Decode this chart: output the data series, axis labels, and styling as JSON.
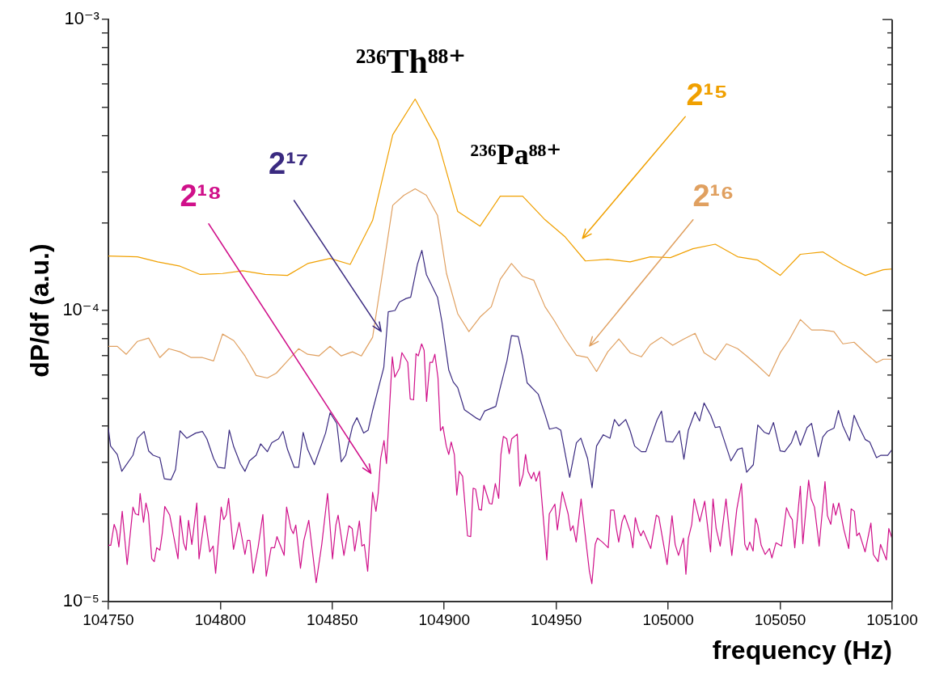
{
  "chart_data": {
    "type": "line",
    "xlabel": "frequency (Hz)",
    "ylabel": "dP/df (a.u.)",
    "annotations": [
      "²³⁶Th⁸⁸⁺",
      "²³⁶Pa⁸⁸⁺"
    ],
    "xlim": [
      104750,
      105100
    ],
    "xticks": [
      104750,
      104800,
      104850,
      104900,
      104950,
      105000,
      105050,
      105100
    ],
    "ylim": [
      1e-05,
      0.001
    ],
    "log": true,
    "yticks": [
      {
        "value": 1e-05,
        "label": "10⁻⁵"
      },
      {
        "value": 2e-05,
        "label": null
      },
      {
        "value": 3e-05,
        "label": null
      },
      {
        "value": 4e-05,
        "label": null
      },
      {
        "value": 5e-05,
        "label": null
      },
      {
        "value": 6e-05,
        "label": null
      },
      {
        "value": 7e-05,
        "label": null
      },
      {
        "value": 8e-05,
        "label": null
      },
      {
        "value": 9e-05,
        "label": null
      },
      {
        "value": 0.0001,
        "label": "10⁻⁴"
      },
      {
        "value": 0.0002,
        "label": null
      },
      {
        "value": 0.0003,
        "label": null
      },
      {
        "value": 0.0004,
        "label": null
      },
      {
        "value": 0.0005,
        "label": null
      },
      {
        "value": 0.0006,
        "label": null
      },
      {
        "value": 0.0007,
        "label": null
      },
      {
        "value": 0.0008,
        "label": null
      },
      {
        "value": 0.0009,
        "label": null
      },
      {
        "value": 0.001,
        "label": "10⁻³"
      }
    ],
    "grid": false,
    "legend": false,
    "marker": "none",
    "line_style": "solid",
    "series": [
      {
        "name": "2¹⁵",
        "color": "#f0a000",
        "x": [
          104750,
          104763,
          104772,
          104782,
          104791,
          104801,
          104810,
          104820,
          104830,
          104839,
          104849,
          104858,
          104868,
          104877,
          104887,
          104897,
          104906,
          104916,
          104925,
          104935,
          104945,
          104954,
          104963,
          104973,
          104983,
          104992,
          105001,
          105011,
          105021,
          105031,
          105040,
          105050,
          105059,
          105069,
          105078,
          105088,
          105096,
          105100
        ],
        "values": [
          0.000154,
          0.000153,
          0.000147,
          0.000142,
          0.000133,
          0.000134,
          0.000137,
          0.000133,
          0.000132,
          0.000145,
          0.000151,
          0.000144,
          0.000204,
          0.000402,
          0.000533,
          0.000385,
          0.000219,
          0.000195,
          0.000247,
          0.000247,
          0.000205,
          0.000179,
          0.000148,
          0.00015,
          0.000147,
          0.000153,
          0.000152,
          0.000163,
          0.000169,
          0.000153,
          0.000149,
          0.000132,
          0.000156,
          0.000159,
          0.000144,
          0.000132,
          0.000138,
          0.000139
        ]
      },
      {
        "name": "2¹⁶",
        "color": "#e0a060",
        "x": [
          104750,
          104754,
          104758,
          104763,
          104768,
          104773,
          104777,
          104782,
          104787,
          104792,
          104797,
          104801,
          104806,
          104811,
          104816,
          104821,
          104825,
          104830,
          104835,
          104839,
          104844,
          104849,
          104854,
          104859,
          104863,
          104868,
          104873,
          104877,
          104882,
          104887,
          104892,
          104897,
          104901,
          104906,
          104911,
          104916,
          104921,
          104925,
          104930,
          104935,
          104940,
          104945,
          104949,
          104954,
          104959,
          104964,
          104968,
          104973,
          104978,
          104983,
          104988,
          104992,
          104997,
          105002,
          105007,
          105012,
          105016,
          105021,
          105026,
          105031,
          105035,
          105040,
          105045,
          105050,
          105054,
          105059,
          105064,
          105069,
          105074,
          105078,
          105083,
          105088,
          105093,
          105096,
          105100
        ],
        "values": [
          7.53e-05,
          7.53e-05,
          7.07e-05,
          7.83e-05,
          8.04e-05,
          6.89e-05,
          7.39e-05,
          7.21e-05,
          6.89e-05,
          6.89e-05,
          6.71e-05,
          8.3e-05,
          7.88e-05,
          6.98e-05,
          5.98e-05,
          5.86e-05,
          6.09e-05,
          6.71e-05,
          7.39e-05,
          7.07e-05,
          6.98e-05,
          7.53e-05,
          6.98e-05,
          7.21e-05,
          6.98e-05,
          8.09e-05,
          0.000144,
          0.00023,
          0.000249,
          0.000262,
          0.000249,
          0.000212,
          0.000134,
          9.75e-05,
          8.46e-05,
          9.5e-05,
          0.000103,
          0.000128,
          0.000145,
          0.000131,
          0.000127,
          0.000103,
          9.26e-05,
          7.98e-05,
          7.02e-05,
          6.89e-05,
          6.17e-05,
          7.21e-05,
          7.98e-05,
          7.16e-05,
          6.93e-05,
          7.63e-05,
          8.09e-05,
          7.59e-05,
          7.98e-05,
          8.35e-05,
          7.16e-05,
          6.76e-05,
          7.68e-05,
          7.39e-05,
          6.98e-05,
          6.46e-05,
          5.94e-05,
          7.16e-05,
          7.93e-05,
          9.31e-05,
          8.57e-05,
          8.57e-05,
          8.46e-05,
          7.68e-05,
          7.78e-05,
          7.16e-05,
          6.62e-05,
          6.8e-05,
          6.8e-05
        ]
      },
      {
        "name": "2¹⁷",
        "color": "#3a2a80",
        "x": [
          104750,
          104751,
          104754,
          104756,
          104761,
          104763,
          104766,
          104768,
          104770,
          104773,
          104775,
          104778,
          104780,
          104782,
          104785,
          104789,
          104792,
          104794,
          104797,
          104799,
          104802,
          104804,
          104806,
          104809,
          104811,
          104813,
          104816,
          104818,
          104821,
          104823,
          104826,
          104828,
          104830,
          104833,
          104835,
          104837,
          104839,
          104842,
          104847,
          104849,
          104852,
          104854,
          104856,
          104859,
          104861,
          104864,
          104866,
          104868,
          104873,
          104875,
          104878,
          104880,
          104883,
          104885,
          104888,
          104890,
          104892,
          104897,
          104899,
          104902,
          104904,
          104906,
          104909,
          104914,
          104916,
          104918,
          104923,
          104925,
          104928,
          104930,
          104933,
          104935,
          104937,
          104942,
          104945,
          104947,
          104950,
          104952,
          104956,
          104959,
          104961,
          104964,
          104966,
          104968,
          104971,
          104974,
          104976,
          104978,
          104981,
          104983,
          104985,
          104988,
          104990,
          104995,
          104997,
          104999,
          105002,
          105005,
          105007,
          105009,
          105012,
          105014,
          105016,
          105019,
          105021,
          105023,
          105028,
          105031,
          105033,
          105035,
          105038,
          105040,
          105043,
          105045,
          105047,
          105050,
          105052,
          105055,
          105057,
          105059,
          105062,
          105064,
          105067,
          105069,
          105071,
          105074,
          105076,
          105078,
          105081,
          105083,
          105085,
          105088,
          105090,
          105093,
          105095,
          105098,
          105100
        ],
        "values": [
          3.94e-05,
          3.42e-05,
          3.2e-05,
          2.8e-05,
          3.18e-05,
          3.64e-05,
          3.84e-05,
          3.29e-05,
          3.18e-05,
          3.12e-05,
          2.64e-05,
          2.62e-05,
          2.84e-05,
          3.86e-05,
          3.64e-05,
          3.79e-05,
          3.84e-05,
          3.62e-05,
          3.1e-05,
          2.89e-05,
          2.87e-05,
          3.88e-05,
          3.4e-05,
          2.97e-05,
          2.8e-05,
          3.04e-05,
          3.18e-05,
          3.48e-05,
          3.27e-05,
          3.51e-05,
          3.62e-05,
          3.84e-05,
          3.33e-05,
          2.89e-05,
          2.89e-05,
          3.81e-05,
          3.33e-05,
          2.95e-05,
          3.79e-05,
          4.45e-05,
          4.09e-05,
          3.02e-05,
          3.18e-05,
          3.99e-05,
          4.28e-05,
          3.79e-05,
          3.88e-05,
          4.53e-05,
          6.37e-05,
          9.9e-05,
          0.0001,
          0.000107,
          0.00011,
          0.000111,
          0.000144,
          0.000161,
          0.000133,
          0.000111,
          9.1e-05,
          6.25e-05,
          5.68e-05,
          5.43e-05,
          4.56e-05,
          4.28e-05,
          4.2e-05,
          4.51e-05,
          4.68e-05,
          5.43e-05,
          6.71e-05,
          8.19e-05,
          8.14e-05,
          6.93e-05,
          5.64e-05,
          5.15e-05,
          4.39e-05,
          3.91e-05,
          3.96e-05,
          3.88e-05,
          2.67e-05,
          3.51e-05,
          3.64e-05,
          3.1e-05,
          2.46e-05,
          3.42e-05,
          3.74e-05,
          3.64e-05,
          4.22e-05,
          4.01e-05,
          4.22e-05,
          3.86e-05,
          3.42e-05,
          3.27e-05,
          3.27e-05,
          4.2e-05,
          4.51e-05,
          3.55e-05,
          3.53e-05,
          3.86e-05,
          3.08e-05,
          3.88e-05,
          4.48e-05,
          4.17e-05,
          4.81e-05,
          4.36e-05,
          3.96e-05,
          3.99e-05,
          3.04e-05,
          3.33e-05,
          3.37e-05,
          2.78e-05,
          2.95e-05,
          4.04e-05,
          3.81e-05,
          3.76e-05,
          4.12e-05,
          3.29e-05,
          3.27e-05,
          3.51e-05,
          3.86e-05,
          3.44e-05,
          3.96e-05,
          4.09e-05,
          3.14e-05,
          3.67e-05,
          3.84e-05,
          3.94e-05,
          4.53e-05,
          4.01e-05,
          3.57e-05,
          4.36e-05,
          4.01e-05,
          3.6e-05,
          3.53e-05,
          3.12e-05,
          3.18e-05,
          3.18e-05,
          3.33e-05
        ]
      },
      {
        "name": "2¹⁸",
        "color": "#d0108a",
        "x": [
          104750.0,
          104751.1,
          104752.6,
          104753.7,
          104754.7,
          104756.2,
          104758.4,
          104761.0,
          104762.1,
          104763.5,
          104764.2,
          104765.7,
          104766.8,
          104767.9,
          104769.4,
          104770.5,
          104771.6,
          104773.0,
          104774.1,
          104775.2,
          104777.4,
          104781.1,
          104782.1,
          104783.6,
          104784.7,
          104785.8,
          104787.3,
          104789.5,
          104790.5,
          104793.1,
          104795.3,
          104796.8,
          104797.9,
          104800.4,
          104801.5,
          104802.6,
          104803.7,
          104805.9,
          104808.4,
          104811.0,
          104812.1,
          104813.2,
          104814.7,
          104816.9,
          104819.0,
          104820.5,
          104822.7,
          104824.2,
          104825.3,
          104828.5,
          104829.6,
          104831.5,
          104832.6,
          104833.7,
          104835.8,
          104837.3,
          104839.5,
          104842.8,
          104845.3,
          104847.9,
          104850.1,
          104851.6,
          104852.6,
          104855.2,
          104857.4,
          104858.9,
          104860.0,
          104862.1,
          104863.2,
          104864.3,
          104865.8,
          104868.0,
          104869.5,
          104870.5,
          104871.6,
          104873.1,
          104874.2,
          104876.8,
          104877.9,
          104880.0,
          104881.1,
          104883.7,
          104884.8,
          104886.3,
          104887.4,
          104888.4,
          104889.9,
          104891.0,
          104892.1,
          104893.6,
          104894.7,
          104895.8,
          104897.2,
          104898.3,
          104899.4,
          104900.9,
          104902.0,
          104903.1,
          104904.5,
          104905.6,
          104906.7,
          104908.2,
          104910.4,
          104911.8,
          104912.9,
          104914.0,
          104915.5,
          104916.6,
          104917.7,
          104920.2,
          104921.3,
          104922.8,
          104924.3,
          104925.3,
          104926.4,
          104927.9,
          104929.0,
          104930.1,
          104932.6,
          104933.7,
          104935.2,
          104936.3,
          104937.4,
          104938.9,
          104940.0,
          104941.0,
          104942.5,
          104945.8,
          104946.9,
          104949.4,
          104950.5,
          104952.7,
          104955.3,
          104956.4,
          104957.5,
          104958.9,
          104961.1,
          104964.8,
          104965.9,
          104967.4,
          104968.4,
          104970.6,
          104973.2,
          104974.3,
          104975.8,
          104976.8,
          104977.9,
          104979.4,
          104980.5,
          104983.1,
          104984.2,
          104985.3,
          104986.7,
          104987.8,
          104988.9,
          104990.4,
          104992.2,
          104994.7,
          104995.8,
          104999.5,
          105001.7,
          105003.1,
          105004.6,
          105006.8,
          105007.9,
          105009.0,
          105010.5,
          105011.6,
          105014.1,
          105016.3,
          105018.9,
          105020.0,
          105021.4,
          105023.2,
          105025.8,
          105028.4,
          105030.6,
          105032.7,
          105034.2,
          105035.3,
          105036.4,
          105037.9,
          105039.0,
          105040.0,
          105041.5,
          105043.3,
          105045.2,
          105046.3,
          105048.1,
          105050.6,
          105052.8,
          105054.3,
          105055.4,
          105056.5,
          105059.0,
          105060.1,
          105062.7,
          105063.8,
          105065.3,
          105067.4,
          105070.0,
          105071.1,
          105072.6,
          105073.7,
          105074.8,
          105076.2,
          105078.4,
          105080.6,
          105081.7,
          105083.1,
          105084.2,
          105085.3,
          105087.9,
          105090.5,
          105091.6,
          105093.7,
          105094.8,
          105097.4,
          105098.5,
          105100.0
        ],
        "values": [
          1.56e-05,
          1.56e-05,
          1.84e-05,
          1.74e-05,
          1.54e-05,
          2.04e-05,
          1.34e-05,
          2.11e-05,
          2e-05,
          1.98e-05,
          2.35e-05,
          1.87e-05,
          2.18e-05,
          2e-05,
          1.4e-05,
          1.37e-05,
          1.53e-05,
          1.5e-05,
          1.72e-05,
          2.12e-05,
          1.98e-05,
          1.4e-05,
          1.97e-05,
          1.59e-05,
          1.5e-05,
          1.9e-05,
          1.57e-05,
          2.18e-05,
          1.4e-05,
          1.97e-05,
          1.48e-05,
          1.55e-05,
          1.25e-05,
          2.11e-05,
          1.91e-05,
          1.98e-05,
          2.26e-05,
          1.51e-05,
          1.87e-05,
          1.45e-05,
          1.62e-05,
          1.62e-05,
          1.25e-05,
          1.54e-05,
          1.99e-05,
          1.22e-05,
          1.53e-05,
          1.53e-05,
          1.67e-05,
          1.44e-05,
          2.11e-05,
          1.78e-05,
          1.71e-05,
          1.83e-05,
          1.3e-05,
          1.62e-05,
          1.9e-05,
          1.16e-05,
          1.57e-05,
          2.35e-05,
          1.4e-05,
          1.83e-05,
          1.98e-05,
          1.44e-05,
          1.82e-05,
          1.78e-05,
          1.49e-05,
          1.89e-05,
          1.55e-05,
          1.57e-05,
          1.27e-05,
          2.37e-05,
          2.04e-05,
          2.35e-05,
          3.1e-05,
          3.57e-05,
          2.98e-05,
          6.93e-05,
          5.9e-05,
          6.34e-05,
          7.16e-05,
          6.63e-05,
          4.96e-05,
          4.93e-05,
          7.11e-05,
          6.98e-05,
          7.68e-05,
          7.3e-05,
          4.87e-05,
          6.63e-05,
          6.63e-05,
          7.07e-05,
          5.86e-05,
          3.86e-05,
          3.99e-05,
          3.42e-05,
          3.2e-05,
          3.53e-05,
          3.2e-05,
          2.32e-05,
          2.8e-05,
          2.69e-05,
          1.68e-05,
          1.67e-05,
          2.45e-05,
          2.43e-05,
          2.07e-05,
          2.06e-05,
          2.51e-05,
          2.17e-05,
          2.16e-05,
          2.54e-05,
          2.26e-05,
          3.2e-05,
          3.69e-05,
          3.62e-05,
          3.22e-05,
          3.62e-05,
          3.76e-05,
          2.49e-05,
          2.73e-05,
          3.2e-05,
          2.8e-05,
          2.64e-05,
          2.78e-05,
          2.59e-05,
          2.8e-05,
          1.39e-05,
          2e-05,
          2.16e-05,
          1.76e-05,
          2.38e-05,
          2e-05,
          1.75e-05,
          1.82e-05,
          1.6e-05,
          2.25e-05,
          1.27e-05,
          1.15e-05,
          1.57e-05,
          1.65e-05,
          1.6e-05,
          1.53e-05,
          2.06e-05,
          2.06e-05,
          1.79e-05,
          1.6e-05,
          1.88e-05,
          1.98e-05,
          1.73e-05,
          1.53e-05,
          1.94e-05,
          1.76e-05,
          1.68e-05,
          1.75e-05,
          1.64e-05,
          1.52e-05,
          1.98e-05,
          1.95e-05,
          1.34e-05,
          1.97e-05,
          1.57e-05,
          1.44e-05,
          1.65e-05,
          1.24e-05,
          1.65e-05,
          1.84e-05,
          2.25e-05,
          1.88e-05,
          2.21e-05,
          1.48e-05,
          2.25e-05,
          1.78e-05,
          1.55e-05,
          2.25e-05,
          1.44e-05,
          2.07e-05,
          2.54e-05,
          1.57e-05,
          1.5e-05,
          1.6e-05,
          1.49e-05,
          1.93e-05,
          1.83e-05,
          1.56e-05,
          1.45e-05,
          1.52e-05,
          1.41e-05,
          1.59e-05,
          1.55e-05,
          2.1e-05,
          1.97e-05,
          1.91e-05,
          1.53e-05,
          2.49e-05,
          1.58e-05,
          2.61e-05,
          2.25e-05,
          2.11e-05,
          1.55e-05,
          2.58e-05,
          1.97e-05,
          1.84e-05,
          2.17e-05,
          1.98e-05,
          2.18e-05,
          1.77e-05,
          1.52e-05,
          2.08e-05,
          2.04e-05,
          1.68e-05,
          1.72e-05,
          1.48e-05,
          1.86e-05,
          1.45e-05,
          1.37e-05,
          1.57e-05,
          1.39e-05,
          1.78e-05,
          1.64e-05
        ]
      }
    ]
  }
}
